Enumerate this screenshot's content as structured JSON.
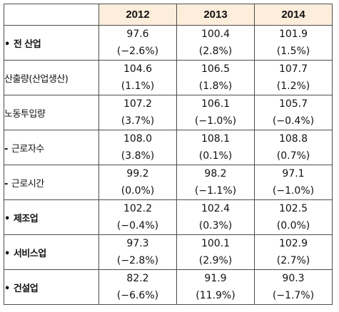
{
  "header": {
    "years": [
      "2012",
      "2013",
      "2014"
    ]
  },
  "rows": [
    {
      "label": "전 산업",
      "bullet": "•",
      "bold": true,
      "indent": 0,
      "cells": [
        {
          "value": "97.6",
          "pct": "(−2.6%)"
        },
        {
          "value": "100.4",
          "pct": "(2.8%)"
        },
        {
          "value": "101.9",
          "pct": "(1.5%)"
        }
      ]
    },
    {
      "label": "산출량(산업생산)",
      "bullet": "",
      "bold": false,
      "indent": 0,
      "cells": [
        {
          "value": "104.6",
          "pct": "(1.1%)"
        },
        {
          "value": "106.5",
          "pct": "(1.8%)"
        },
        {
          "value": "107.7",
          "pct": "(1.2%)"
        }
      ]
    },
    {
      "label": "노동투입량",
      "bullet": "",
      "bold": false,
      "indent": 0,
      "cells": [
        {
          "value": "107.2",
          "pct": "(3.7%)"
        },
        {
          "value": "106.1",
          "pct": "(−1.0%)"
        },
        {
          "value": "105.7",
          "pct": "(−0.4%)"
        }
      ]
    },
    {
      "label": "근로자수",
      "bullet": "-",
      "bold": false,
      "indent": 1,
      "cells": [
        {
          "value": "108.0",
          "pct": "(3.8%)"
        },
        {
          "value": "108.1",
          "pct": "(0.1%)"
        },
        {
          "value": "108.8",
          "pct": "(0.7%)"
        }
      ]
    },
    {
      "label": "근로시간",
      "bullet": "-",
      "bold": false,
      "indent": 2,
      "cells": [
        {
          "value": "99.2",
          "pct": "(0.0%)"
        },
        {
          "value": "98.2",
          "pct": "(−1.1%)"
        },
        {
          "value": "97.1",
          "pct": "(−1.0%)"
        }
      ]
    },
    {
      "label": "제조업",
      "bullet": "•",
      "bold": true,
      "indent": 0,
      "cells": [
        {
          "value": "102.2",
          "pct": "(−0.4%)"
        },
        {
          "value": "102.4",
          "pct": "(0.3%)"
        },
        {
          "value": "102.5",
          "pct": "(0.0%)"
        }
      ]
    },
    {
      "label": "서비스업",
      "bullet": "•",
      "bold": true,
      "indent": 0,
      "cells": [
        {
          "value": "97.3",
          "pct": "(−2.8%)"
        },
        {
          "value": "100.1",
          "pct": "(2.9%)"
        },
        {
          "value": "102.9",
          "pct": "(2.7%)"
        }
      ]
    },
    {
      "label": "건설업",
      "bullet": "•",
      "bold": true,
      "indent": 0,
      "cells": [
        {
          "value": "82.2",
          "pct": "(−6.6%)"
        },
        {
          "value": "91.9",
          "pct": "(11.9%)"
        },
        {
          "value": "90.3",
          "pct": "(−1.7%)"
        }
      ]
    }
  ],
  "colors": {
    "header_fill": "#fdeedb",
    "border": "#4d4d4d",
    "text": "#111111"
  }
}
